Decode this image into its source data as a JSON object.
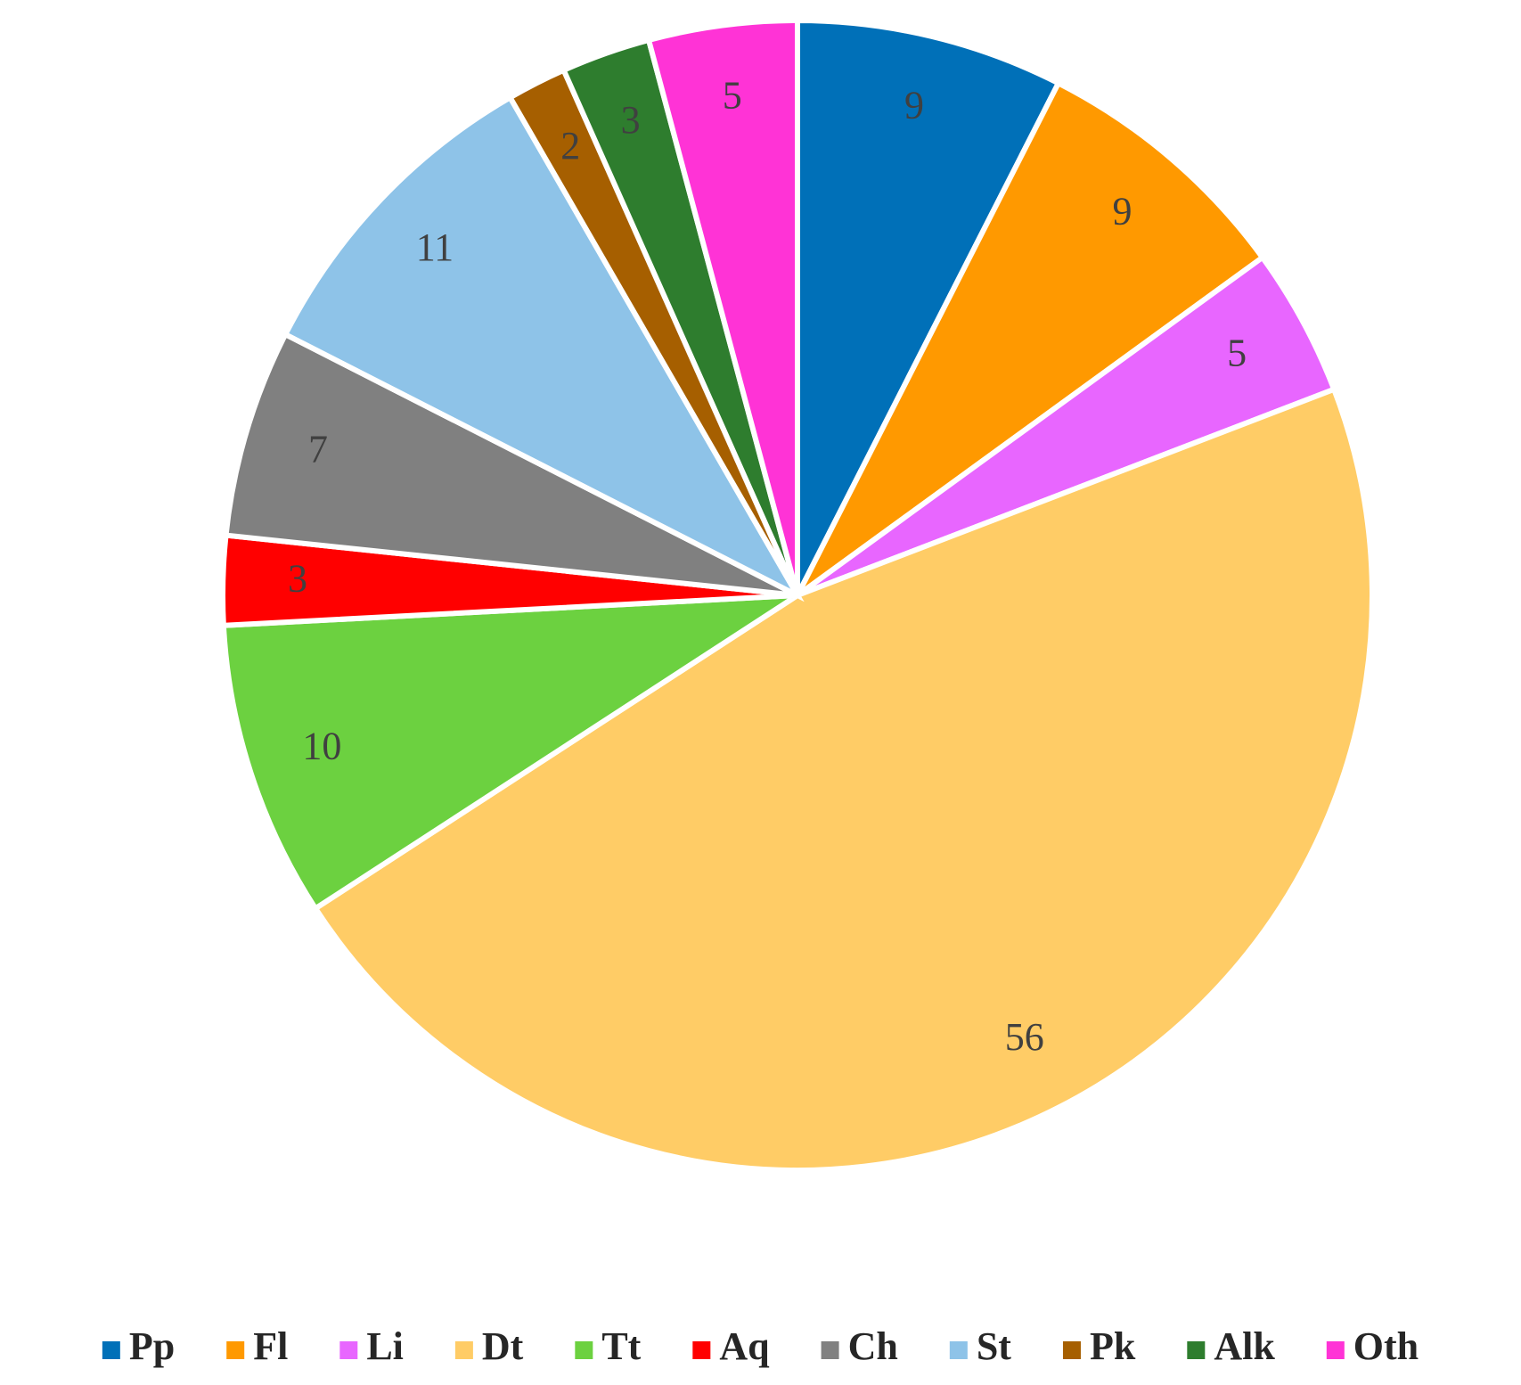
{
  "chart_data": {
    "type": "pie",
    "categories": [
      "Pp",
      "Fl",
      "Li",
      "Dt",
      "Tt",
      "Aq",
      "Ch",
      "St",
      "Pk",
      "Alk",
      "Oth"
    ],
    "values": [
      9,
      9,
      5,
      56,
      10,
      3,
      7,
      11,
      2,
      3,
      5
    ],
    "colors": [
      "#0070b8",
      "#ff9900",
      "#e866ff",
      "#ffcc66",
      "#6cd140",
      "#ff0000",
      "#808080",
      "#8ec3e8",
      "#a65f00",
      "#2e7d2e",
      "#ff33d6"
    ],
    "legend": "bottom"
  }
}
